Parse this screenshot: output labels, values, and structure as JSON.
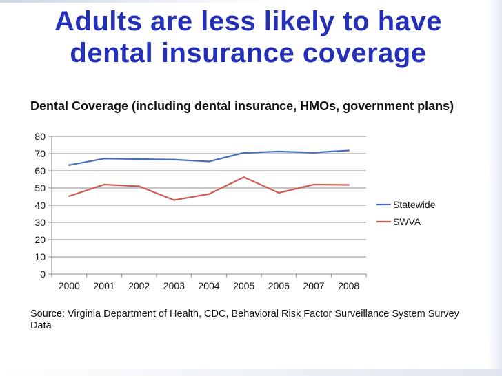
{
  "title": "Adults are less likely to have dental insurance coverage",
  "source": "Source: Virginia Department of Health, CDC,  Behavioral Risk Factor Surveillance System Survey Data",
  "chart_data": {
    "type": "line",
    "title": "Dental Coverage (including dental insurance, HMOs, government plans)",
    "xlabel": "",
    "ylabel": "",
    "ylim": [
      0,
      80
    ],
    "yticks": [
      "0",
      "10",
      "20",
      "30",
      "40",
      "50",
      "60",
      "70",
      "80"
    ],
    "categories": [
      "2000",
      "2001",
      "2002",
      "2003",
      "2004",
      "2005",
      "2006",
      "2007",
      "2008"
    ],
    "grid": true,
    "legend": "right",
    "series": [
      {
        "name": "Statewide",
        "color": "#4a6fb5",
        "values": [
          63.3,
          67.1,
          66.8,
          66.5,
          65.4,
          70.5,
          71.2,
          70.6,
          71.8
        ]
      },
      {
        "name": "SWVA",
        "color": "#cf5b53",
        "values": [
          45.3,
          52.0,
          51.0,
          43.0,
          46.5,
          56.3,
          47.2,
          52.0,
          51.8
        ]
      }
    ]
  }
}
